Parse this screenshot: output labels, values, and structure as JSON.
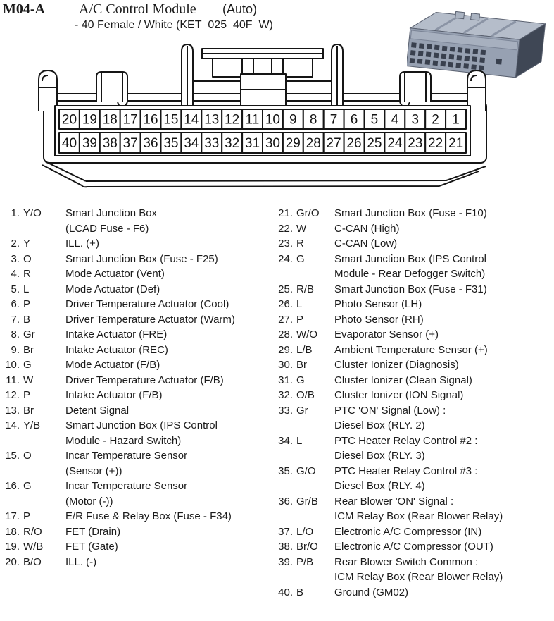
{
  "header": {
    "code": "M04-A",
    "title": "A/C Control Module",
    "variant": "(Auto)",
    "subtitle": "- 40 Female / White (KET_025_40F_W)"
  },
  "colors": {
    "background": "#ffffff",
    "text": "#1b1b1b",
    "line_art": "#151515",
    "illustration_top": "#b5bdca",
    "illustration_front": "#97a1b2",
    "illustration_end": "#3f4755",
    "illustration_holes": "#39404e"
  },
  "pin_grid": {
    "top_row": [
      "20",
      "19",
      "18",
      "17",
      "16",
      "15",
      "14",
      "13",
      "12",
      "11",
      "10",
      "9",
      "8",
      "7",
      "6",
      "5",
      "4",
      "3",
      "2",
      "1"
    ],
    "bottom_row": [
      "40",
      "39",
      "38",
      "37",
      "36",
      "35",
      "34",
      "33",
      "32",
      "31",
      "30",
      "29",
      "28",
      "27",
      "26",
      "25",
      "24",
      "23",
      "22",
      "21"
    ]
  },
  "pins_left": [
    {
      "num": "1.",
      "color": "Y/O",
      "lines": [
        "Smart Junction Box",
        "(LCAD Fuse - F6)"
      ]
    },
    {
      "num": "2.",
      "color": "Y",
      "lines": [
        "ILL. (+)"
      ]
    },
    {
      "num": "3.",
      "color": "O",
      "lines": [
        "Smart Junction Box (Fuse - F25)"
      ]
    },
    {
      "num": "4.",
      "color": "R",
      "lines": [
        "Mode Actuator (Vent)"
      ]
    },
    {
      "num": "5.",
      "color": "L",
      "lines": [
        "Mode Actuator (Def)"
      ]
    },
    {
      "num": "6.",
      "color": "P",
      "lines": [
        "Driver Temperature Actuator (Cool)"
      ]
    },
    {
      "num": "7.",
      "color": "B",
      "lines": [
        "Driver Temperature Actuator (Warm)"
      ]
    },
    {
      "num": "8.",
      "color": "Gr",
      "lines": [
        "Intake Actuator (FRE)"
      ]
    },
    {
      "num": "9.",
      "color": "Br",
      "lines": [
        "Intake Actuator (REC)"
      ]
    },
    {
      "num": "10.",
      "color": "G",
      "lines": [
        "Mode Actuator (F/B)"
      ]
    },
    {
      "num": "11.",
      "color": "W",
      "lines": [
        "Driver Temperature Actuator (F/B)"
      ]
    },
    {
      "num": "12.",
      "color": "P",
      "lines": [
        "Intake Actuator (F/B)"
      ]
    },
    {
      "num": "13.",
      "color": "Br",
      "lines": [
        "Detent Signal"
      ]
    },
    {
      "num": "14.",
      "color": "Y/B",
      "lines": [
        "Smart Junction Box (IPS Control",
        "Module - Hazard Switch)"
      ]
    },
    {
      "num": "15.",
      "color": "O",
      "lines": [
        "Incar Temperature Sensor",
        "(Sensor (+))"
      ]
    },
    {
      "num": "16.",
      "color": "G",
      "lines": [
        "Incar Temperature Sensor",
        "(Motor (-))"
      ]
    },
    {
      "num": "17.",
      "color": "P",
      "lines": [
        "E/R Fuse & Relay Box (Fuse - F34)"
      ]
    },
    {
      "num": "18.",
      "color": "R/O",
      "lines": [
        "FET (Drain)"
      ]
    },
    {
      "num": "19.",
      "color": "W/B",
      "lines": [
        "FET (Gate)"
      ]
    },
    {
      "num": "20.",
      "color": "B/O",
      "lines": [
        "ILL. (-)"
      ]
    }
  ],
  "pins_right": [
    {
      "num": "21.",
      "color": "Gr/O",
      "lines": [
        "Smart Junction Box (Fuse - F10)"
      ]
    },
    {
      "num": "22.",
      "color": "W",
      "lines": [
        "C-CAN (High)"
      ]
    },
    {
      "num": "23.",
      "color": "R",
      "lines": [
        "C-CAN (Low)"
      ]
    },
    {
      "num": "24.",
      "color": "G",
      "lines": [
        "Smart Junction Box (IPS Control",
        "Module - Rear Defogger Switch)"
      ]
    },
    {
      "num": "25.",
      "color": "R/B",
      "lines": [
        "Smart Junction Box (Fuse - F31)"
      ]
    },
    {
      "num": "26.",
      "color": "L",
      "lines": [
        "Photo Sensor (LH)"
      ]
    },
    {
      "num": "27.",
      "color": "P",
      "lines": [
        "Photo Sensor (RH)"
      ]
    },
    {
      "num": "28.",
      "color": "W/O",
      "lines": [
        "Evaporator Sensor (+)"
      ]
    },
    {
      "num": "29.",
      "color": "L/B",
      "lines": [
        "Ambient Temperature Sensor (+)"
      ]
    },
    {
      "num": "30.",
      "color": "Br",
      "lines": [
        "Cluster Ionizer (Diagnosis)"
      ]
    },
    {
      "num": "31.",
      "color": "G",
      "lines": [
        "Cluster Ionizer (Clean Signal)"
      ]
    },
    {
      "num": "32.",
      "color": "O/B",
      "lines": [
        "Cluster Ionizer (ION Signal)"
      ]
    },
    {
      "num": "33.",
      "color": "Gr",
      "lines": [
        "PTC 'ON' Signal (Low) :",
        "Diesel Box (RLY. 2)"
      ]
    },
    {
      "num": "34.",
      "color": "L",
      "lines": [
        "PTC Heater Relay Control #2 :",
        "Diesel Box (RLY. 3)"
      ]
    },
    {
      "num": "35.",
      "color": "G/O",
      "lines": [
        "PTC Heater Relay Control #3 :",
        "Diesel Box (RLY. 4)"
      ]
    },
    {
      "num": "36.",
      "color": "Gr/B",
      "lines": [
        "Rear Blower 'ON' Signal :",
        "ICM Relay Box (Rear Blower Relay)"
      ]
    },
    {
      "num": "37.",
      "color": "L/O",
      "lines": [
        "Electronic A/C Compressor (IN)"
      ]
    },
    {
      "num": "38.",
      "color": "Br/O",
      "lines": [
        "Electronic A/C Compressor (OUT)"
      ]
    },
    {
      "num": "39.",
      "color": "P/B",
      "lines": [
        "Rear Blower Switch Common :",
        "ICM Relay Box (Rear Blower Relay)"
      ]
    },
    {
      "num": "40.",
      "color": "B",
      "lines": [
        "Ground (GM02)"
      ]
    }
  ]
}
